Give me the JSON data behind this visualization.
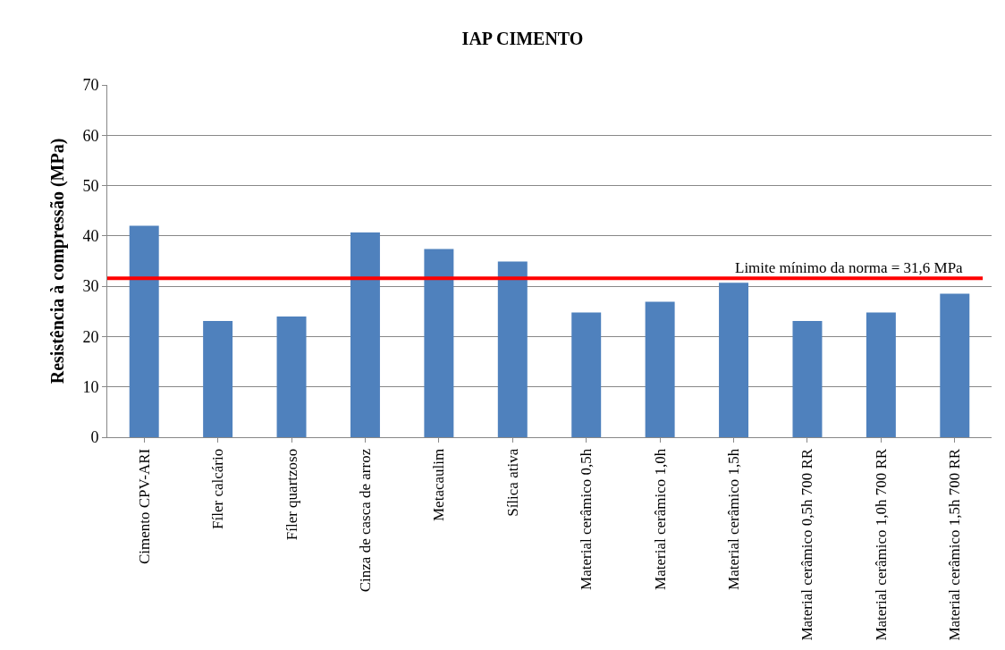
{
  "chart_data": {
    "type": "bar",
    "title": "IAP CIMENTO",
    "ylabel": "Resistência à compressão (MPa)",
    "categories": [
      "Cimento CPV-ARI",
      "Fíler calcário",
      "Fíler quartzoso",
      "Cinza de casca de arroz",
      "Metacaulim",
      "Sílica ativa",
      "Material cerâmico 0,5h",
      "Material cerâmico 1,0h",
      "Material cerâmico 1,5h",
      "Material cerâmico 0,5h 700 RR",
      "Material cerâmico 1,0h 700 RR",
      "Material cerâmico 1,5h 700 RR"
    ],
    "values": [
      42,
      23.1,
      24,
      40.7,
      37.4,
      34.9,
      24.8,
      26.9,
      30.7,
      23.1,
      24.8,
      28.5
    ],
    "color": "#4f81bd",
    "ylim": [
      0,
      70
    ],
    "yticks": [
      0,
      10,
      20,
      30,
      40,
      50,
      60,
      70
    ],
    "grid": "y",
    "ref_lines": [
      {
        "axis": "y",
        "value": 31.6,
        "label": "Limite mínimo da norma = 31,6 MPa",
        "color": "#ff0000"
      }
    ]
  }
}
